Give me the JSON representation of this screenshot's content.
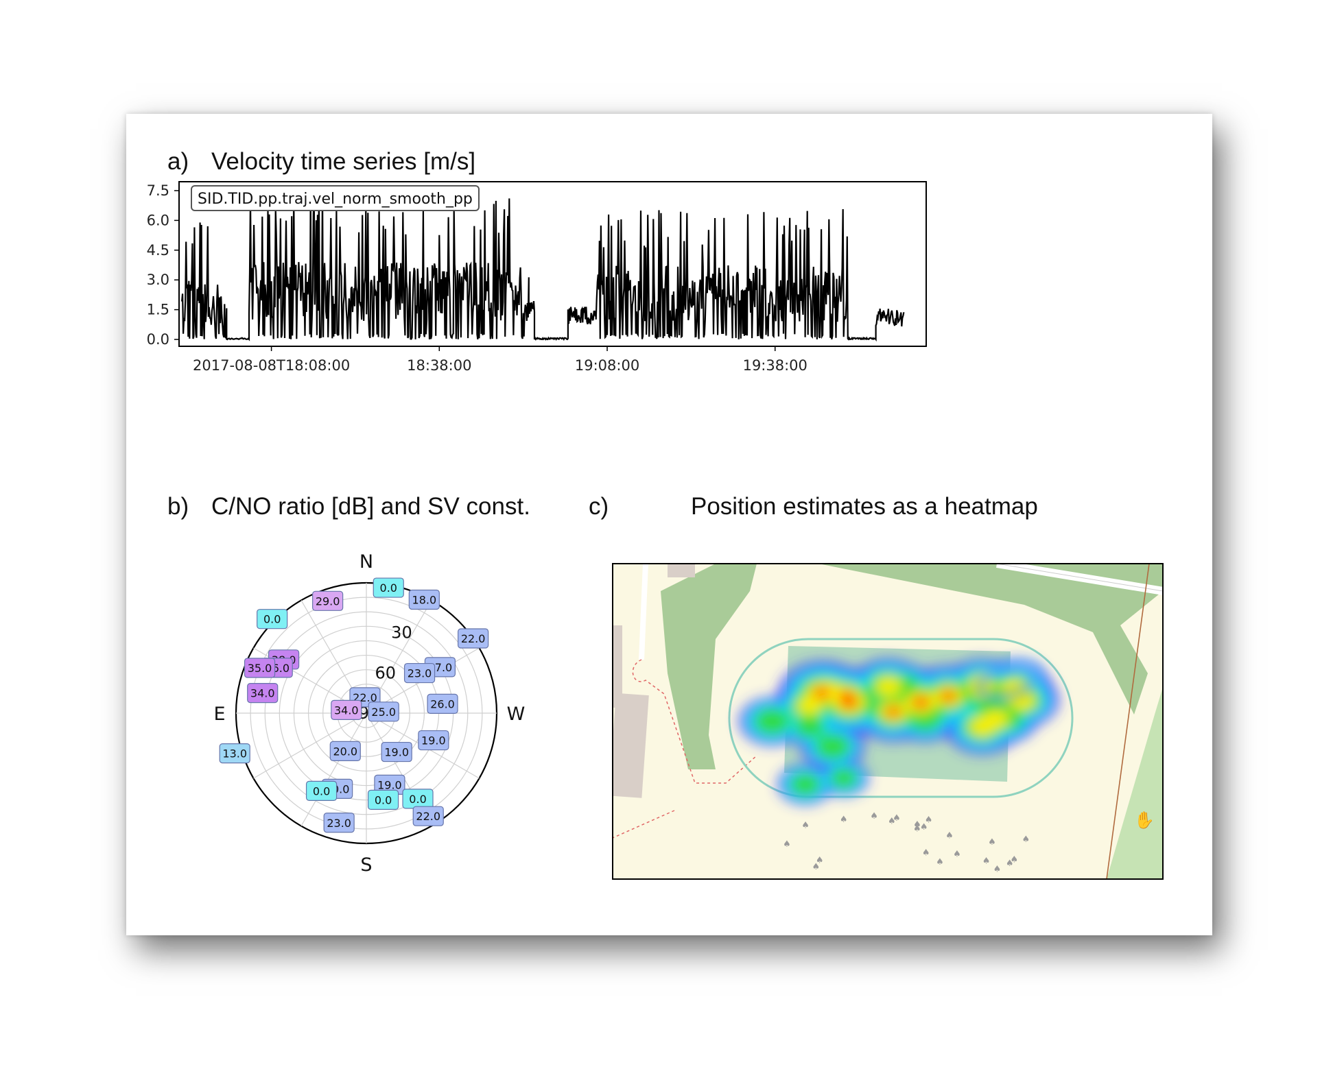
{
  "panel_a": {
    "letter": "a)",
    "title": "Velocity time series [m/s]"
  },
  "panel_b": {
    "letter": "b)",
    "title": "C/NO ratio [dB] and SV const."
  },
  "panel_c": {
    "letter": "c)",
    "title": "Position estimates as a heatmap"
  },
  "colors": {
    "line": "#000000",
    "sv_blue": "#a9bdf5",
    "sv_cyan": "#7ff0f4",
    "sv_violet": "#d9a7f2",
    "sv_purple": "#c584f0",
    "sv_sky": "#9fd8f5",
    "map_bg": "#fbf8e2",
    "map_green": "#a9cb98",
    "map_track": "#8fd3bf"
  },
  "chart_data": [
    {
      "type": "line",
      "legend": "SID.TID.pp.traj.vel_norm_smooth_pp",
      "legend_position": "top-left",
      "ylim": [
        0.0,
        7.5
      ],
      "yticks": [
        "0.0",
        "1.5",
        "3.0",
        "4.5",
        "6.0",
        "7.5"
      ],
      "xticks": [
        "2017-08-08T18:08:00",
        "18:38:00",
        "19:08:00",
        "19:38:00"
      ],
      "xlim_minutes_from_first_tick": [
        -16.5,
        117
      ],
      "grid": false,
      "segments": [
        {
          "start": "17:52",
          "end": "18:00",
          "max": 6.0,
          "typical": 1.8
        },
        {
          "start": "18:00",
          "end": "18:04",
          "max": 0.1,
          "typical": 0.0
        },
        {
          "start": "18:04",
          "end": "18:54",
          "max": 7.5,
          "typical": 2.3
        },
        {
          "start": "18:54",
          "end": "18:55",
          "max": 2.1,
          "typical": 1.7
        },
        {
          "start": "18:55",
          "end": "19:01",
          "max": 0.1,
          "typical": 0.0
        },
        {
          "start": "19:01",
          "end": "19:06",
          "max": 1.8,
          "typical": 1.2
        },
        {
          "start": "19:06",
          "end": "19:51",
          "max": 6.6,
          "typical": 2.2
        },
        {
          "start": "19:51",
          "end": "19:56",
          "max": 0.1,
          "typical": 0.0
        },
        {
          "start": "19:56",
          "end": "20:01",
          "max": 1.4,
          "typical": 1.1
        }
      ]
    },
    {
      "type": "scatter",
      "subtype": "polar skyplot",
      "compass": {
        "N": "N",
        "S": "S",
        "E": "E",
        "W": "W"
      },
      "elevation_rings": [
        0,
        10,
        20,
        30,
        40,
        50,
        60,
        70,
        80,
        90
      ],
      "elevation_labels": [
        "30",
        "60",
        "90"
      ],
      "satellites": [
        {
          "cn0": "0.0",
          "azimuth": 350,
          "elevation": 2,
          "color": "cyan"
        },
        {
          "cn0": "18.0",
          "azimuth": 333,
          "elevation": 2,
          "color": "blue"
        },
        {
          "cn0": "29.0",
          "azimuth": 19,
          "elevation": 8,
          "color": "violet"
        },
        {
          "cn0": "0.0",
          "azimuth": 45,
          "elevation": -2,
          "color": "cyan"
        },
        {
          "cn0": "22.0",
          "azimuth": 305,
          "elevation": 0,
          "color": "blue"
        },
        {
          "cn0": "38.0",
          "azimuth": 57,
          "elevation": 22,
          "color": "purple"
        },
        {
          "cn0": "36.0",
          "azimuth": 63,
          "elevation": 21,
          "color": "purple"
        },
        {
          "cn0": "35.0",
          "azimuth": 67,
          "elevation": 10,
          "color": "purple"
        },
        {
          "cn0": "27.0",
          "azimuth": 302,
          "elevation": 30,
          "color": "blue"
        },
        {
          "cn0": "23.0",
          "azimuth": 307,
          "elevation": 44,
          "color": "blue"
        },
        {
          "cn0": "22.0",
          "azimuth": 5,
          "elevation": 79,
          "color": "blue"
        },
        {
          "cn0": "34.0",
          "azimuth": 79,
          "elevation": 17,
          "color": "purple"
        },
        {
          "cn0": "26.0",
          "azimuth": 277,
          "elevation": 37,
          "color": "blue"
        },
        {
          "cn0": "25.0",
          "azimuth": 275,
          "elevation": 78,
          "color": "blue"
        },
        {
          "cn0": "34.0",
          "azimuth": 81,
          "elevation": 76,
          "color": "violet"
        },
        {
          "cn0": "19.0",
          "azimuth": 248,
          "elevation": 40,
          "color": "blue"
        },
        {
          "cn0": "19.0",
          "azimuth": 218,
          "elevation": 56,
          "color": "blue"
        },
        {
          "cn0": "20.0",
          "azimuth": 151,
          "elevation": 60,
          "color": "blue"
        },
        {
          "cn0": "13.0",
          "azimuth": 107,
          "elevation": -5,
          "color": "sky"
        },
        {
          "cn0": "19.0",
          "azimuth": 198,
          "elevation": 38,
          "color": "blue"
        },
        {
          "cn0": "0.0",
          "azimuth": 211,
          "elevation": 21,
          "color": "cyan"
        },
        {
          "cn0": "0.0",
          "azimuth": 191,
          "elevation": 29,
          "color": "cyan"
        },
        {
          "cn0": "20.0",
          "azimuth": 159,
          "elevation": 34,
          "color": "blue"
        },
        {
          "cn0": "0.0",
          "azimuth": 150,
          "elevation": 28,
          "color": "cyan"
        },
        {
          "cn0": "22.0",
          "azimuth": 211,
          "elevation": 7,
          "color": "blue"
        },
        {
          "cn0": "23.0",
          "azimuth": 166,
          "elevation": 12,
          "color": "blue"
        }
      ]
    },
    {
      "type": "heatmap",
      "subtype": "map overlay",
      "colormap": [
        "blue",
        "cyan",
        "green",
        "yellow",
        "red"
      ],
      "hotspots": [
        {
          "x": 0.38,
          "y": 0.41,
          "w": 0.9
        },
        {
          "x": 0.43,
          "y": 0.44,
          "w": 1.0
        },
        {
          "x": 0.51,
          "y": 0.47,
          "w": 0.8
        },
        {
          "x": 0.56,
          "y": 0.44,
          "w": 0.95
        },
        {
          "x": 0.61,
          "y": 0.42,
          "w": 0.85
        },
        {
          "x": 0.67,
          "y": 0.39,
          "w": 0.7
        },
        {
          "x": 0.4,
          "y": 0.58,
          "w": 0.5
        },
        {
          "x": 0.35,
          "y": 0.7,
          "w": 0.35
        },
        {
          "x": 0.42,
          "y": 0.68,
          "w": 0.25
        },
        {
          "x": 0.29,
          "y": 0.5,
          "w": 0.55
        }
      ]
    }
  ]
}
